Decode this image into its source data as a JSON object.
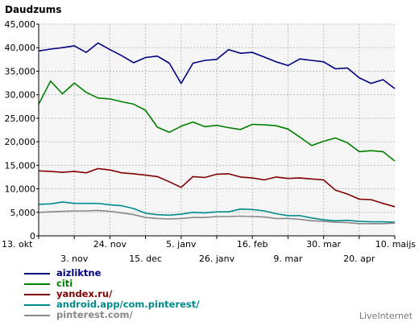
{
  "chart_data": {
    "type": "line",
    "title": "Daudzums",
    "ylim": [
      0,
      45000
    ],
    "y_ticks": [
      0,
      5000,
      10000,
      15000,
      20000,
      25000,
      30000,
      35000,
      40000,
      45000
    ],
    "y_tick_labels": [
      "0",
      "5,000",
      "10,000",
      "15,000",
      "20,000",
      "25,000",
      "30,000",
      "35,000",
      "40,000",
      "45,000"
    ],
    "x_tick_labels_upper": [
      "13. okt",
      "24. nov",
      "5. janv",
      "16. feb",
      "30. mar",
      "10. maijs"
    ],
    "x_tick_labels_lower": [
      "3. nov",
      "15. dec",
      "26. janv",
      "9. mar",
      "20. apr"
    ],
    "grid": true,
    "series": [
      {
        "name": "aizliktne",
        "color": "#000080",
        "values": [
          39300,
          39700,
          40000,
          40400,
          39000,
          41000,
          39600,
          38300,
          36800,
          37900,
          38200,
          36700,
          32400,
          36700,
          37300,
          37500,
          39600,
          38800,
          39000,
          38000,
          37000,
          36200,
          37600,
          37300,
          37000,
          35500,
          35700,
          33600,
          32400,
          33200,
          31300
        ]
      },
      {
        "name": "citi",
        "color": "#008000",
        "values": [
          28000,
          32900,
          30200,
          32500,
          30500,
          29300,
          29100,
          28500,
          28000,
          26700,
          23100,
          22000,
          23300,
          24200,
          23200,
          23500,
          23000,
          22600,
          23700,
          23600,
          23400,
          22700,
          21000,
          19200,
          20100,
          20800,
          19800,
          17900,
          18100,
          17900,
          15900
        ]
      },
      {
        "name": "yandex.ru/",
        "color": "#800000",
        "values": [
          13800,
          13700,
          13500,
          13700,
          13400,
          14300,
          14000,
          13400,
          13200,
          12900,
          12600,
          11500,
          10300,
          12600,
          12400,
          13100,
          13200,
          12500,
          12300,
          11900,
          12500,
          12200,
          12300,
          12100,
          11900,
          9700,
          8900,
          7800,
          7700,
          6900,
          6200
        ]
      },
      {
        "name": "android.app/com.pinterest/",
        "color": "#008b8b",
        "values": [
          6700,
          6800,
          7200,
          6900,
          6900,
          6900,
          6600,
          6400,
          5800,
          4800,
          4500,
          4400,
          4600,
          5000,
          4900,
          5100,
          5100,
          5700,
          5600,
          5300,
          4700,
          4300,
          4300,
          3800,
          3400,
          3200,
          3300,
          3100,
          3000,
          3000,
          2900
        ]
      },
      {
        "name": "pinterest.com/",
        "color": "#888888",
        "values": [
          5000,
          5100,
          5200,
          5300,
          5300,
          5400,
          5200,
          4900,
          4500,
          3900,
          3700,
          3600,
          3700,
          3900,
          3900,
          4100,
          4100,
          4200,
          4100,
          4000,
          3700,
          3700,
          3500,
          3200,
          3100,
          2900,
          2800,
          2600,
          2600,
          2600,
          2700
        ]
      }
    ]
  },
  "footer": {
    "credit": "LiveInternet"
  }
}
